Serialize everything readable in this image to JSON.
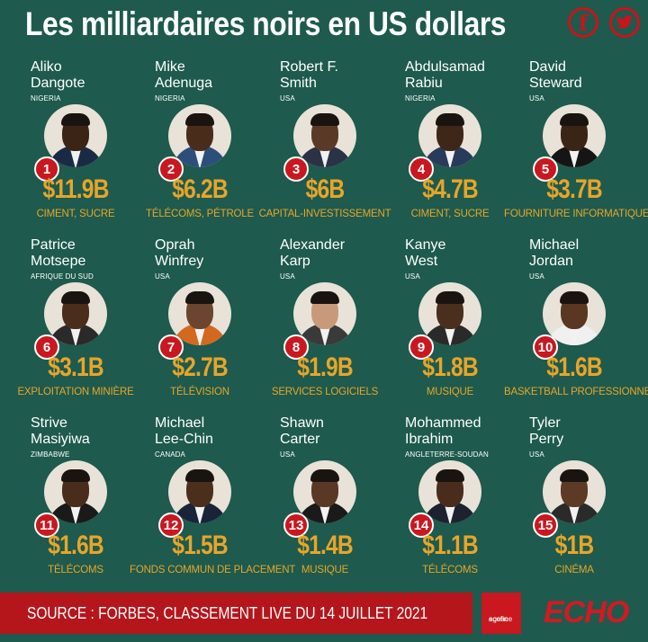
{
  "header": {
    "title": "Les milliardaires noirs en US dollars"
  },
  "social": {
    "facebook_glyph": "f",
    "facebook_icon": "facebook-icon",
    "twitter_icon": "twitter-icon"
  },
  "colors": {
    "background": "#1e5a4d",
    "accent_red": "#c9181f",
    "accent_gold": "#e7a52a"
  },
  "people": [
    {
      "rank": "1",
      "first": "Aliko",
      "last": "Dangote",
      "country": "NIGERIA",
      "worth": "$11.9B",
      "sector": "CIMENT, SUCRE"
    },
    {
      "rank": "2",
      "first": "Mike",
      "last": "Adenuga",
      "country": "NIGERIA",
      "worth": "$6.2B",
      "sector": "TÉLÉCOMS, PÉTROLE"
    },
    {
      "rank": "3",
      "first": "Robert F.",
      "last": "Smith",
      "country": "USA",
      "worth": "$6B",
      "sector": "CAPITAL-INVESTISSEMENT"
    },
    {
      "rank": "4",
      "first": "Abdulsamad",
      "last": "Rabiu",
      "country": "NIGERIA",
      "worth": "$4.7B",
      "sector": "CIMENT, SUCRE"
    },
    {
      "rank": "5",
      "first": "David",
      "last": "Steward",
      "country": "USA",
      "worth": "$3.7B",
      "sector": "FOURNITURE INFORMATIQUE"
    },
    {
      "rank": "6",
      "first": "Patrice",
      "last": "Motsepe",
      "country": "AFRIQUE DU SUD",
      "worth": "$3.1B",
      "sector": "EXPLOITATION MINIÈRE"
    },
    {
      "rank": "7",
      "first": "Oprah",
      "last": "Winfrey",
      "country": "USA",
      "worth": "$2.7B",
      "sector": "TÉLÉVISION"
    },
    {
      "rank": "8",
      "first": "Alexander",
      "last": "Karp",
      "country": "USA",
      "worth": "$1.9B",
      "sector": "SERVICES LOGICIELS"
    },
    {
      "rank": "9",
      "first": "Kanye",
      "last": "West",
      "country": "USA",
      "worth": "$1.8B",
      "sector": "MUSIQUE"
    },
    {
      "rank": "10",
      "first": "Michael",
      "last": "Jordan",
      "country": "USA",
      "worth": "$1.6B",
      "sector": "BASKETBALL PROFESSIONNEL"
    },
    {
      "rank": "11",
      "first": "Strive",
      "last": "Masiyiwa",
      "country": "ZIMBABWE",
      "worth": "$1.6B",
      "sector": "TÉLÉCOMS"
    },
    {
      "rank": "12",
      "first": "Michael",
      "last": "Lee-Chin",
      "country": "CANADA",
      "worth": "$1.5B",
      "sector": "FONDS COMMUN DE PLACEMENT"
    },
    {
      "rank": "13",
      "first": "Shawn",
      "last": "Carter",
      "country": "USA",
      "worth": "$1.4B",
      "sector": "MUSIQUE"
    },
    {
      "rank": "14",
      "first": "Mohammed",
      "last": "Ibrahim",
      "country": "ANGLETERRE-SOUDAN",
      "worth": "$1.1B",
      "sector": "TÉLÉCOMS"
    },
    {
      "rank": "15",
      "first": "Tyler",
      "last": "Perry",
      "country": "USA",
      "worth": "$1B",
      "sector": "CINÉMA"
    }
  ],
  "footer": {
    "source": "SOURCE : FORBES, CLASSEMENT LIVE DU 14 JUILLET 2021",
    "ecofin_line1": "agence",
    "ecofin_line2": "ecofin",
    "echo_logo": "ECHO"
  }
}
